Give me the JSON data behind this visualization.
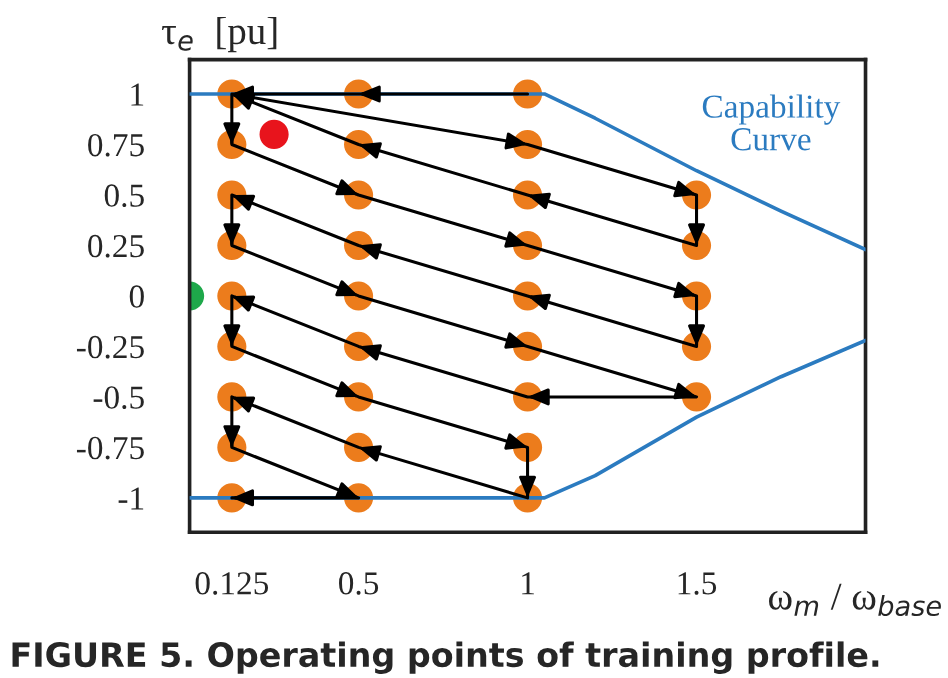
{
  "chart_data": {
    "type": "scatter",
    "ylabel": "τ$_{e}$  [pu]",
    "xlabel": "ω$_{m}$ / ω$_{base}$",
    "annotations": [
      "Capability\nCurve",
      "FIGURE 5. Operating points of training profile."
    ],
    "xlim": [
      0,
      2
    ],
    "xticks": [
      0.125,
      0.5,
      1,
      1.5
    ],
    "ylim": [
      -1.17,
      1.17
    ],
    "yticks": [
      -1,
      -0.75,
      -0.5,
      -0.25,
      0,
      0.25,
      0.5,
      0.75,
      1
    ],
    "grid": false,
    "legend": false,
    "tick_labels": "xy",
    "series": [
      {
        "type": "line",
        "color": "#2b7bc0",
        "line_style": "solid",
        "x": [
          0,
          1.05,
          1.2,
          1.5,
          1.75,
          2
        ],
        "values": [
          1,
          1,
          0.88,
          0.62,
          0.42,
          0.23
        ]
      },
      {
        "type": "line",
        "color": "#2b7bc0",
        "line_style": "solid",
        "x": [
          0,
          1.05,
          1.2,
          1.5,
          1.75,
          2
        ],
        "values": [
          -1,
          -1,
          -0.89,
          -0.6,
          -0.4,
          -0.22
        ]
      },
      {
        "type": "scatter",
        "color": "#ec7c1c",
        "marker": "circle",
        "x": [
          0.125,
          0.125,
          0.125,
          0.125,
          0.125,
          0.125,
          0.125,
          0.125,
          0.125,
          0.5,
          0.5,
          0.5,
          0.5,
          0.5,
          0.5,
          0.5,
          0.5,
          0.5,
          1,
          1,
          1,
          1,
          1,
          1,
          1,
          1,
          1,
          1.5,
          1.5,
          1.5,
          1.5,
          1.5
        ],
        "values": [
          1,
          0.75,
          0.5,
          0.25,
          0,
          -0.25,
          -0.5,
          -0.75,
          -1,
          1,
          0.75,
          0.5,
          0.25,
          0,
          -0.25,
          -0.5,
          -0.75,
          -1,
          1,
          0.75,
          0.5,
          0.25,
          0,
          -0.25,
          -0.5,
          -0.75,
          -1,
          0.5,
          0.25,
          0,
          -0.25,
          -0.5
        ]
      },
      {
        "type": "scatter",
        "color": "#e8141c",
        "marker": "circle",
        "x": [
          0.25
        ],
        "values": [
          0.8
        ]
      },
      {
        "type": "scatter",
        "color": "#1ea84a",
        "marker": "circle",
        "x": [
          0
        ],
        "values": [
          0
        ]
      },
      {
        "type": "line",
        "color": "#000000",
        "line_style": "solid",
        "x": [
          1,
          0.5,
          0.125,
          1,
          1.5,
          1.5,
          1,
          0.5,
          0.125,
          0.125,
          0.5,
          1,
          1.5,
          1.5,
          1,
          0.5,
          0.125,
          0.125,
          0.5,
          1,
          1.5,
          1,
          0.5,
          0.125,
          0.125,
          0.5,
          1,
          1,
          0.5,
          0.125,
          0.125,
          0.5,
          0.125
        ],
        "values": [
          1,
          1,
          1,
          0.75,
          0.5,
          0.25,
          0.5,
          0.75,
          1,
          0.75,
          0.5,
          0.25,
          0,
          -0.25,
          0,
          0.25,
          0.5,
          0.25,
          0,
          -0.25,
          -0.5,
          -0.5,
          -0.25,
          0,
          -0.25,
          -0.5,
          -0.75,
          -1,
          -0.75,
          -0.5,
          -0.75,
          -1,
          -1
        ]
      }
    ]
  }
}
